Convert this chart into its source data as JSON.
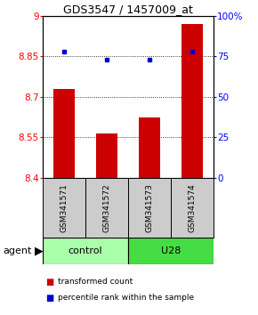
{
  "title": "GDS3547 / 1457009_at",
  "samples": [
    "GSM341571",
    "GSM341572",
    "GSM341573",
    "GSM341574"
  ],
  "bar_values": [
    8.73,
    8.565,
    8.625,
    8.97
  ],
  "percentile_values": [
    78,
    73,
    73,
    78
  ],
  "ylim": [
    8.4,
    9.0
  ],
  "yticks": [
    8.4,
    8.55,
    8.7,
    8.85,
    9
  ],
  "ytick_labels": [
    "8.4",
    "8.55",
    "8.7",
    "8.85",
    "9"
  ],
  "right_yticks_pct": [
    0,
    25,
    50,
    75,
    100
  ],
  "bar_color": "#cc0000",
  "dot_color": "#0000cc",
  "agent_label": "agent",
  "legend_bar_label": "transformed count",
  "legend_dot_label": "percentile rank within the sample",
  "bar_width": 0.5,
  "label_area_color": "#cccccc",
  "group_area_color_control": "#aaffaa",
  "group_area_color_u28": "#44dd44"
}
